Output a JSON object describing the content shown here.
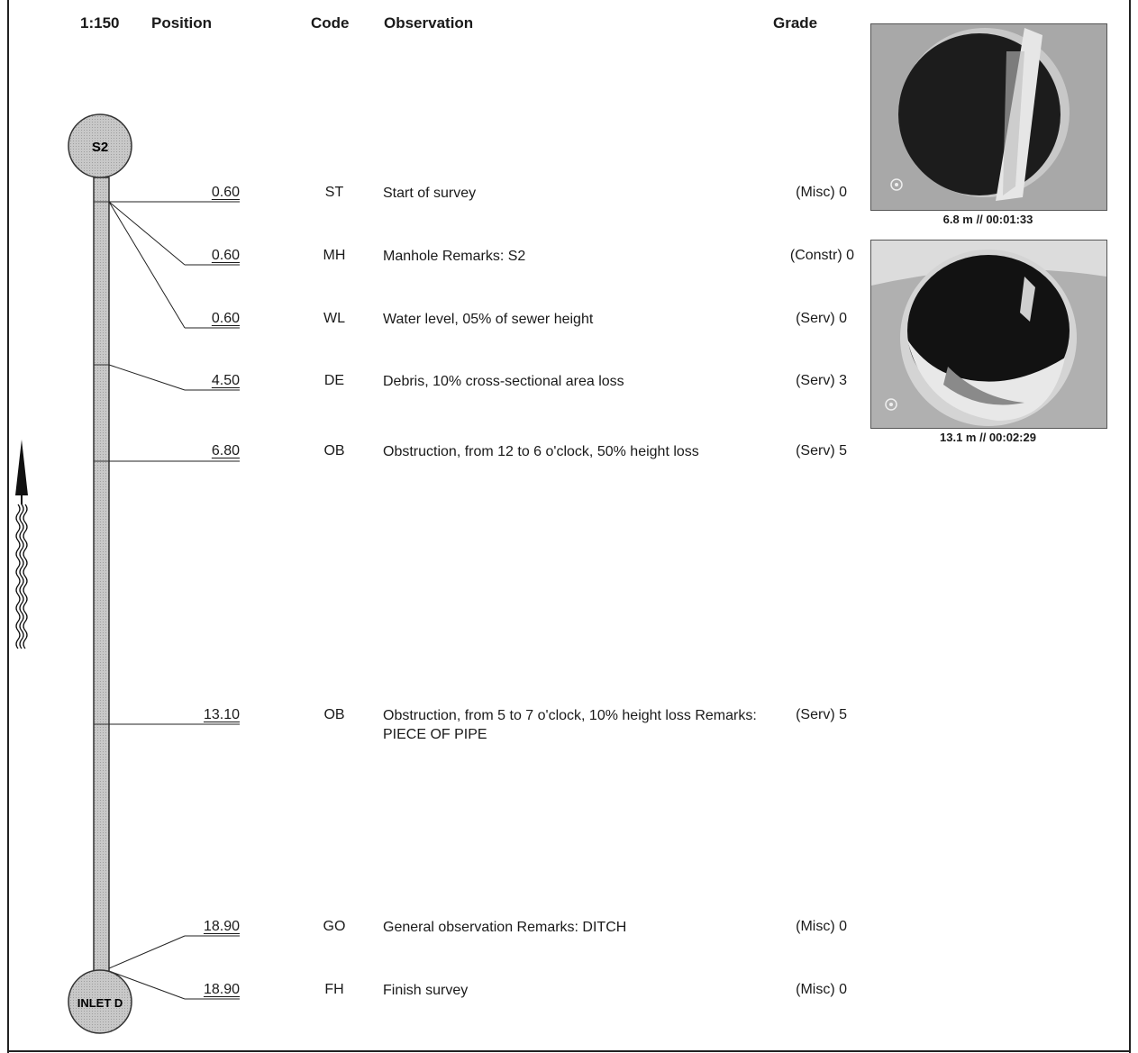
{
  "header": {
    "scale": "1:150",
    "position": "Position",
    "code": "Code",
    "observation": "Observation",
    "grade": "Grade"
  },
  "manholes": {
    "start": "S2",
    "end": "INLET D"
  },
  "observations": [
    {
      "position": "0.60",
      "code": "ST",
      "text": "Start of survey",
      "grade": "(Misc) 0"
    },
    {
      "position": "0.60",
      "code": "MH",
      "text": "Manhole Remarks: S2",
      "grade": "(Constr) 0"
    },
    {
      "position": "0.60",
      "code": "WL",
      "text": "Water level, 05% of sewer height",
      "grade": "(Serv) 0"
    },
    {
      "position": "4.50",
      "code": "DE",
      "text": "Debris, 10% cross-sectional area loss",
      "grade": "(Serv) 3"
    },
    {
      "position": "6.80",
      "code": "OB",
      "text": "Obstruction, from 12 to 6 o'clock, 50% height loss",
      "grade": "(Serv) 5"
    },
    {
      "position": "13.10",
      "code": "OB",
      "text": "Obstruction, from 5 to 7 o'clock, 10% height loss Remarks: PIECE OF PIPE",
      "grade": "(Serv) 5"
    },
    {
      "position": "18.90",
      "code": "GO",
      "text": "General observation Remarks: DITCH",
      "grade": "(Misc) 0"
    },
    {
      "position": "18.90",
      "code": "FH",
      "text": "Finish survey",
      "grade": "(Misc) 0"
    }
  ],
  "photos": [
    {
      "caption": "6.8 m // 00:01:33",
      "icon": "camera-lens-icon"
    },
    {
      "caption": "13.1 m // 00:02:29",
      "icon": "camera-lens-icon"
    }
  ],
  "flow_direction": "up"
}
